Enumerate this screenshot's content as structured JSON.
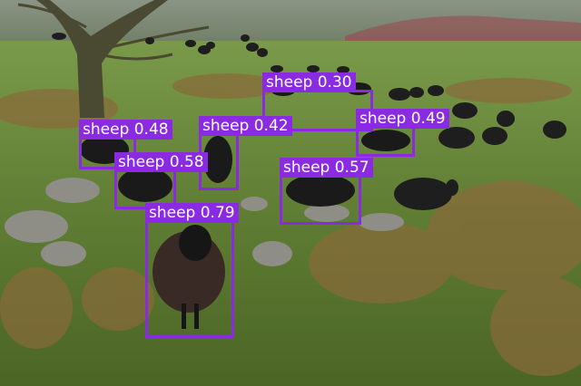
{
  "image": {
    "subject": "flock of black sheep in a grassy, rocky field with a tree",
    "box_color": "#8a2be2",
    "label_text_color": "#ffffff"
  },
  "detections": [
    {
      "label": "sheep 0.30"
    },
    {
      "label": "sheep 0.48"
    },
    {
      "label": "sheep 0.42"
    },
    {
      "label": "sheep 0.49"
    },
    {
      "label": "sheep 0.58"
    },
    {
      "label": "sheep 0.57"
    },
    {
      "label": "sheep 0.79"
    }
  ]
}
